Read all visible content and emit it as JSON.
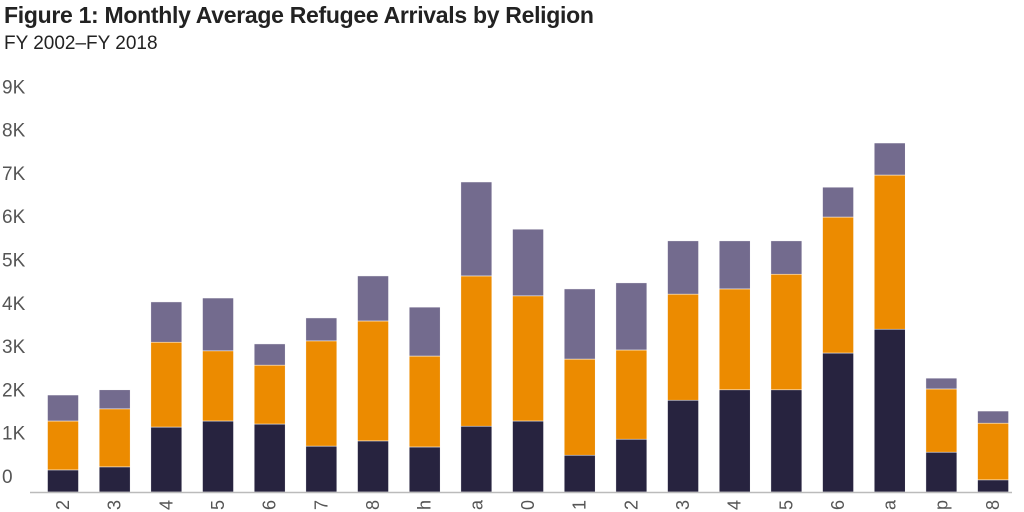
{
  "chart_data": {
    "type": "bar",
    "stacked": true,
    "title": "Figure 1: Monthly Average Refugee Arrivals by Religion",
    "subtitle": "FY 2002–FY 2018",
    "xlabel": "",
    "ylabel": "",
    "ylim": [
      0,
      9000
    ],
    "yticks": [
      0,
      1000,
      2000,
      3000,
      4000,
      5000,
      6000,
      7000,
      8000,
      9000
    ],
    "ytick_labels": [
      "0",
      "1K",
      "2K",
      "3K",
      "4K",
      "5K",
      "6K",
      "7K",
      "8K",
      "9K"
    ],
    "categories": [
      "2",
      "3",
      "4",
      "5",
      "6",
      "7",
      "8",
      "h",
      "a",
      "0",
      "1",
      "2",
      "3",
      "4",
      "5",
      "6",
      "a",
      "p",
      "8"
    ],
    "grid": false,
    "legend": "none",
    "series": [
      {
        "color": "#27233f",
        "values": [
          510,
          580,
          1500,
          1640,
          1570,
          1060,
          1180,
          1040,
          1520,
          1640,
          850,
          1220,
          2120,
          2360,
          2360,
          3210,
          3760,
          920,
          280
        ]
      },
      {
        "color": "#ec8b00",
        "values": [
          1130,
          1340,
          1960,
          1620,
          1360,
          2430,
          2770,
          2100,
          3470,
          2890,
          2220,
          2060,
          2450,
          2330,
          2670,
          3140,
          3560,
          1460,
          1310
        ]
      },
      {
        "color": "#736b8e",
        "values": [
          600,
          440,
          930,
          1220,
          490,
          530,
          1040,
          1130,
          2170,
          1540,
          1620,
          1550,
          1230,
          1110,
          770,
          690,
          740,
          250,
          280
        ]
      }
    ]
  }
}
